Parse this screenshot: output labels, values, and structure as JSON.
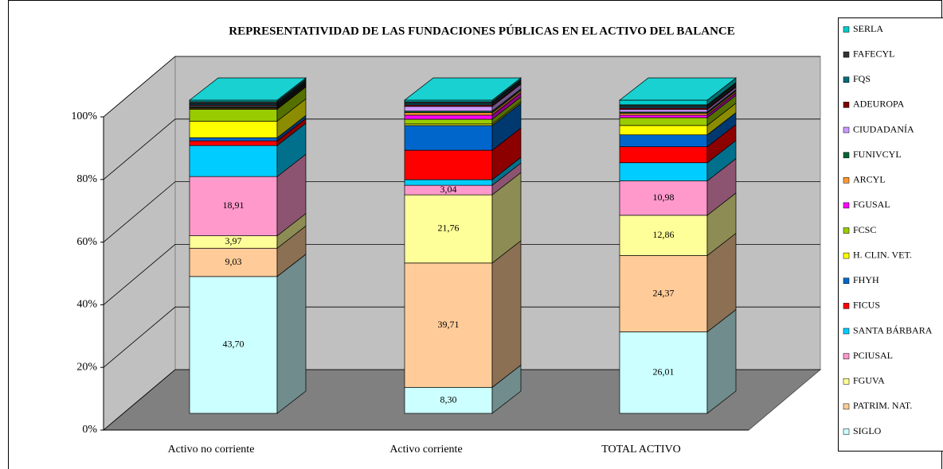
{
  "chart_data": {
    "type": "stacked_bar_3d",
    "title": "REPRESENTATIVIDAD DE LAS FUNDACIONES PÚBLICAS EN EL ACTIVO DEL BALANCE",
    "categories": [
      "Activo no corriente",
      "Activo corriente",
      "TOTAL ACTIVO"
    ],
    "ylim": [
      0,
      100
    ],
    "yticks": [
      {
        "value": 0,
        "label": "0%"
      },
      {
        "value": 20,
        "label": "20%"
      },
      {
        "value": 40,
        "label": "40%"
      },
      {
        "value": 60,
        "label": "60%"
      },
      {
        "value": 80,
        "label": "80%"
      },
      {
        "value": 100,
        "label": "100%"
      }
    ],
    "grid": true,
    "legend": "right",
    "series": [
      {
        "name": "SIGLO",
        "color": "#ccffff",
        "values": [
          43.7,
          8.3,
          26.01
        ],
        "value_labels": [
          "43,70",
          "8,30",
          "26,01"
        ]
      },
      {
        "name": "PATRIM. NAT.",
        "color": "#ffcc99",
        "values": [
          9.03,
          39.71,
          24.37
        ],
        "value_labels": [
          "9,03",
          "39,71",
          "24,37"
        ]
      },
      {
        "name": "FGUVA",
        "color": "#ffff99",
        "values": [
          3.97,
          21.76,
          12.86
        ],
        "value_labels": [
          "3,97",
          "21,76",
          "12,86"
        ]
      },
      {
        "name": "PCIUSAL",
        "color": "#ff99cc",
        "values": [
          18.91,
          3.04,
          10.98
        ],
        "value_labels": [
          "18,91",
          "3,04",
          "10,98"
        ]
      },
      {
        "name": "SANTA BÁRBARA",
        "color": "#00ccff",
        "values": [
          9.9,
          1.8,
          5.8
        ]
      },
      {
        "name": "FICUS",
        "color": "#ff0000",
        "values": [
          1.5,
          9.4,
          5.1
        ]
      },
      {
        "name": "FHYH",
        "color": "#0066cc",
        "values": [
          1.0,
          7.9,
          3.8
        ]
      },
      {
        "name": "H. CLIN. VET.",
        "color": "#ffff00",
        "values": [
          5.3,
          0.5,
          3.0
        ]
      },
      {
        "name": "FCSC",
        "color": "#99cc00",
        "values": [
          3.8,
          1.5,
          2.5
        ]
      },
      {
        "name": "FGUSAL",
        "color": "#ff00ff",
        "values": [
          0.2,
          1.3,
          0.8
        ]
      },
      {
        "name": "ARCYL",
        "color": "#ff9933",
        "values": [
          0.3,
          0.8,
          0.6
        ]
      },
      {
        "name": "FUNIVCYL",
        "color": "#006633",
        "values": [
          0.3,
          0.5,
          0.4
        ]
      },
      {
        "name": "CIUDADANÍA",
        "color": "#cc99ff",
        "values": [
          0.3,
          1.49,
          0.8
        ]
      },
      {
        "name": "ADEUROPA",
        "color": "#800000",
        "values": [
          0.3,
          0.5,
          0.5
        ]
      },
      {
        "name": "FQS",
        "color": "#006b7b",
        "values": [
          0.4,
          0.5,
          0.5
        ]
      },
      {
        "name": "FAFECYL",
        "color": "#333333",
        "values": [
          0.6,
          0.5,
          0.5
        ]
      },
      {
        "name": "SERLA",
        "color": "#00cccc",
        "values": [
          0.49,
          0.5,
          1.48
        ]
      }
    ]
  }
}
